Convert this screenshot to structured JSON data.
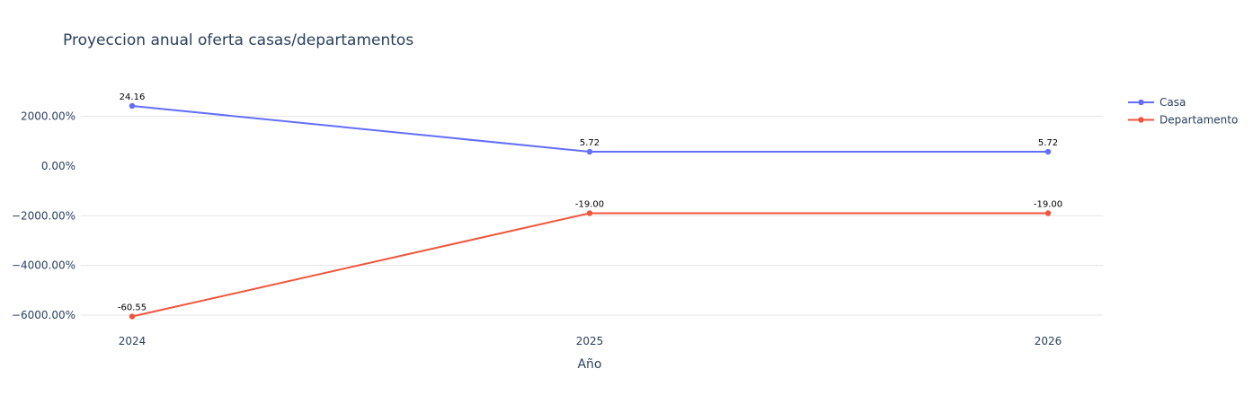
{
  "chart_data": {
    "type": "line",
    "title": "Proyeccion anual oferta casas/departamentos",
    "xlabel": "Año",
    "ylabel": "",
    "categories": [
      "2024",
      "2025",
      "2026"
    ],
    "ylim": [
      -6300,
      3300
    ],
    "yticks": [
      {
        "value": 2000,
        "label": "2000.00%"
      },
      {
        "value": 0,
        "label": "0.00%"
      },
      {
        "value": -2000,
        "label": "−2000.00%"
      },
      {
        "value": -4000,
        "label": "−4000.00%"
      },
      {
        "value": -6000,
        "label": "−6000.00%"
      }
    ],
    "grid": true,
    "legend_position": "top-right",
    "series": [
      {
        "name": "Casa",
        "color": "#636efa",
        "values": [
          2416,
          572,
          572
        ],
        "labels": [
          "24.16",
          "5.72",
          "5.72"
        ]
      },
      {
        "name": "Departamento",
        "color": "#ef553b",
        "values": [
          -6055,
          -1900,
          -1900
        ],
        "labels": [
          "-60.55",
          "-19.00",
          "-19.00"
        ]
      }
    ]
  }
}
